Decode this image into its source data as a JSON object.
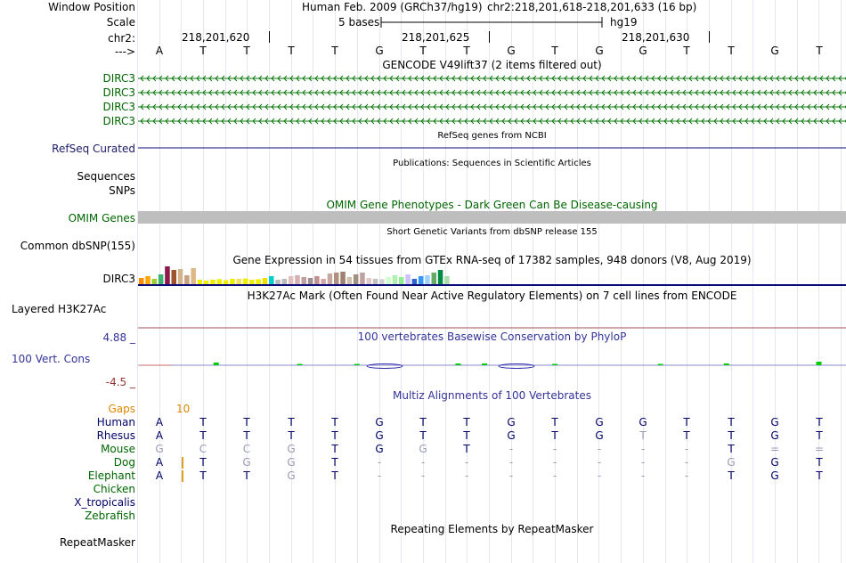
{
  "header": {
    "assembly_label": "Human Feb. 2009 (GRCh37/hg19)",
    "position_label": "chr2:218,201,618-218,201,633 (16 bp)",
    "scale_label": "5 bases",
    "db_label": "hg19",
    "coords": [
      "218,201,620",
      "218,201,625",
      "218,201,630"
    ],
    "bases": [
      "A",
      "T",
      "T",
      "T",
      "T",
      "G",
      "T",
      "T",
      "G",
      "T",
      "G",
      "G",
      "T",
      "T",
      "G",
      "T"
    ]
  },
  "side_labels": {
    "window_position": "Window Position",
    "scale": "Scale",
    "chr": "chr2:",
    "arrow": "--->",
    "dirc3_1": "DIRC3",
    "dirc3_2": "DIRC3",
    "dirc3_3": "DIRC3",
    "dirc3_4": "DIRC3",
    "refseq": "RefSeq Curated",
    "sequences": "Sequences",
    "snps": "SNPs",
    "omim": "OMIM Genes",
    "common_dbsnp": "Common dbSNP(155)",
    "gtex": "DIRC3",
    "h3k27ac": "Layered H3K27Ac",
    "cons_top": "4.88 _",
    "cons_label": "100 Vert. Cons",
    "cons_bottom": "-4.5 _",
    "gaps": "Gaps",
    "repeatmasker": "RepeatMasker"
  },
  "track_titles": {
    "gencode": "GENCODE V49lift37 (2 items filtered out)",
    "refseq": "RefSeq genes from NCBI",
    "publications": "Publications: Sequences in Scientific Articles",
    "omim": "OMIM Gene Phenotypes - Dark Green Can Be Disease-causing",
    "dbsnp": "Short Genetic Variants from dbSNP release 155",
    "gtex": "Gene Expression in 54 tissues from GTEx RNA-seq of 17382 samples, 948 donors (V8, Aug 2019)",
    "h3k27ac": "H3K27Ac Mark (Often Found Near Active Regulatory Elements) on 7 cell lines from ENCODE",
    "phylop": "100 vertebrates Basewise Conservation by PhyloP",
    "multiz": "Multiz Alignments of 100 Vertebrates",
    "repeatmasker": "Repeating Elements by RepeatMasker"
  },
  "gaps_value": "10",
  "species": [
    {
      "name": "Human",
      "color": "#000066",
      "bases": [
        "A",
        "T",
        "T",
        "T",
        "T",
        "G",
        "T",
        "T",
        "G",
        "T",
        "G",
        "G",
        "T",
        "T",
        "G",
        "T"
      ]
    },
    {
      "name": "Rhesus",
      "color": "#000066",
      "bases": [
        "A",
        "T",
        "T",
        "T",
        "T",
        "G",
        "T",
        "T",
        "G",
        "T",
        "G",
        "T",
        "T",
        "T",
        "G",
        "T"
      ]
    },
    {
      "name": "Mouse",
      "color": "#006600",
      "bases": [
        "G",
        "C",
        "C",
        "G",
        "T",
        "G",
        "G",
        "T",
        "-",
        "-",
        "-",
        "-",
        "-",
        "T",
        "=",
        "="
      ]
    },
    {
      "name": "Dog",
      "color": "#006600",
      "bases": [
        "A",
        "T",
        "G",
        "G",
        "T",
        "-",
        "-",
        "-",
        "-",
        "-",
        "-",
        "-",
        "-",
        "G",
        "G",
        "T"
      ]
    },
    {
      "name": "Elephant",
      "color": "#006600",
      "bases": [
        "A",
        "T",
        "T",
        "G",
        "T",
        "-",
        "-",
        "-",
        "-",
        "-",
        "-",
        "-",
        "-",
        "T",
        "G",
        "T"
      ]
    },
    {
      "name": "Chicken",
      "color": "#006600",
      "bases": []
    },
    {
      "name": "X_tropicalis",
      "color": "#000066",
      "bases": []
    },
    {
      "name": "Zebrafish",
      "color": "#006600",
      "bases": []
    }
  ],
  "species_faded": [
    [
      false,
      false,
      false,
      false,
      false,
      false,
      false,
      false,
      false,
      false,
      false,
      false,
      false,
      false,
      false,
      false
    ],
    [
      false,
      false,
      false,
      false,
      false,
      false,
      false,
      false,
      false,
      false,
      false,
      true,
      false,
      false,
      false,
      false
    ],
    [
      true,
      true,
      true,
      true,
      false,
      false,
      true,
      false,
      true,
      true,
      true,
      true,
      true,
      false,
      true,
      true
    ],
    [
      false,
      false,
      true,
      true,
      false,
      true,
      true,
      true,
      true,
      true,
      true,
      true,
      true,
      true,
      false,
      false
    ],
    [
      false,
      false,
      false,
      true,
      false,
      true,
      true,
      true,
      true,
      true,
      true,
      true,
      true,
      false,
      false,
      false
    ]
  ],
  "gtex_bars": [
    {
      "h": 0.35,
      "c": "#ff8c00"
    },
    {
      "h": 0.45,
      "c": "#ffa500"
    },
    {
      "h": 0.3,
      "c": "#9acd32"
    },
    {
      "h": 0.55,
      "c": "#3cb371"
    },
    {
      "h": 1.0,
      "c": "#8b1a4a"
    },
    {
      "h": 0.8,
      "c": "#a0522d"
    },
    {
      "h": 0.85,
      "c": "#d2b48c"
    },
    {
      "h": 0.5,
      "c": "#c8a080"
    },
    {
      "h": 0.9,
      "c": "#deb887"
    },
    {
      "h": 0.25,
      "c": "#eeee00"
    },
    {
      "h": 0.2,
      "c": "#eeee00"
    },
    {
      "h": 0.25,
      "c": "#eeee00"
    },
    {
      "h": 0.28,
      "c": "#eeee00"
    },
    {
      "h": 0.22,
      "c": "#eeee00"
    },
    {
      "h": 0.3,
      "c": "#eeee00"
    },
    {
      "h": 0.3,
      "c": "#f0e060"
    },
    {
      "h": 0.32,
      "c": "#eeee00"
    },
    {
      "h": 0.25,
      "c": "#eeee00"
    },
    {
      "h": 0.28,
      "c": "#eeee00"
    },
    {
      "h": 0.35,
      "c": "#eedd00"
    },
    {
      "h": 0.45,
      "c": "#00ced1"
    },
    {
      "h": 0.25,
      "c": "#bbbbbb"
    },
    {
      "h": 0.3,
      "c": "#bbbbbb"
    },
    {
      "h": 0.45,
      "c": "#e0c0c0"
    },
    {
      "h": 0.5,
      "c": "#d8b0b0"
    },
    {
      "h": 0.4,
      "c": "#c0a0a0"
    },
    {
      "h": 0.35,
      "c": "#a09090"
    },
    {
      "h": 0.45,
      "c": "#c09090"
    },
    {
      "h": 0.3,
      "c": "#d0a8a8"
    },
    {
      "h": 0.6,
      "c": "#c8a8a0"
    },
    {
      "h": 0.65,
      "c": "#b09080"
    },
    {
      "h": 0.7,
      "c": "#a08070"
    },
    {
      "h": 0.4,
      "c": "#d0c0b0"
    },
    {
      "h": 0.55,
      "c": "#a09080"
    },
    {
      "h": 0.65,
      "c": "#c0a0a0"
    },
    {
      "h": 0.35,
      "c": "#e0c8c8"
    },
    {
      "h": 0.3,
      "c": "#c0c0c0"
    },
    {
      "h": 0.28,
      "c": "#d0d0d0"
    },
    {
      "h": 0.4,
      "c": "#ccffcc"
    },
    {
      "h": 0.5,
      "c": "#b0f0b0"
    },
    {
      "h": 0.4,
      "c": "#90ee90"
    },
    {
      "h": 0.55,
      "c": "#ccc0ff"
    },
    {
      "h": 0.3,
      "c": "#3366cc"
    },
    {
      "h": 0.45,
      "c": "#3399ff"
    },
    {
      "h": 0.5,
      "c": "#a0d0ff"
    },
    {
      "h": 0.65,
      "c": "#66aa66"
    },
    {
      "h": 0.8,
      "c": "#008b45"
    },
    {
      "h": 0.45,
      "c": "#aaddaa"
    }
  ],
  "phylop_ticks": [
    {
      "col": 1.3,
      "h": 3,
      "c": "#00cc00"
    },
    {
      "col": 3.2,
      "h": 1.5,
      "c": "#00cc00"
    },
    {
      "col": 4.5,
      "h": 1.5,
      "c": "#00cc00"
    },
    {
      "col": 6.8,
      "h": 2,
      "c": "#00cc00"
    },
    {
      "col": 7.4,
      "h": 2,
      "c": "#00cc00"
    },
    {
      "col": 9.0,
      "h": 1.5,
      "c": "#00cc00"
    },
    {
      "col": 11.4,
      "h": 1.5,
      "c": "#00cc00"
    },
    {
      "col": 12.9,
      "h": 2,
      "c": "#00cc00"
    },
    {
      "col": 15.0,
      "h": 4,
      "c": "#00cc00"
    }
  ]
}
